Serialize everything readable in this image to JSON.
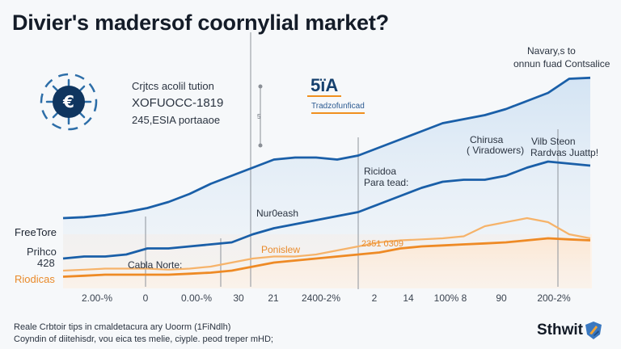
{
  "header": {
    "title": "Divier's madersof coornylial market?"
  },
  "info_panel": {
    "icon": "euro-coin-icon",
    "line1": "Crjtcs acolil tution",
    "line2": "XOFUOCC-1819",
    "line3": "245,ESIA portaaoe"
  },
  "badge": {
    "value": "5ïA",
    "subtitle": "Tradzofunficad"
  },
  "range_marker": {
    "label": "5"
  },
  "annotations": {
    "top_right_line1": "Navary,s to",
    "top_right_line2": "onnun fuad Contsalice",
    "chirusa_line1": "Chirusa",
    "chirusa_line2": "( Viradowers)",
    "vilb_line1": "Vilb Steon",
    "vilb_line2": "Rardvas Juattp!",
    "ricidoa_line1": "Ricidoa",
    "ricidoa_line2": "Para tead:",
    "nur": "Nur0eash",
    "ponislew": "Ponislew",
    "orange_value": "2351 0309",
    "cable": "Cabla Norte:"
  },
  "legend_left": {
    "freetore": "FreeTore",
    "prihco": "Prihco",
    "prihco_value": "428",
    "riodicas": "Riodicas"
  },
  "footer": {
    "line1": "Reale Crbtoir tips in cmaldetacura ary Uoorm (1FiNdlh)",
    "line2": "Coyndin of diitehisdr, vou eica tes melie, ciyple. peod treper mHD;"
  },
  "logo": {
    "text": "Sthwit",
    "icon": "shield-logo-icon"
  },
  "colors": {
    "blue_line": "#1a5fa8",
    "blue_fill": "#d7e6f4",
    "orange_line": "#ee8a25",
    "orange_light": "#f6b36a",
    "orange_fill": "#fde9d6",
    "navy": "#0f355f"
  },
  "chart_data": {
    "type": "line",
    "title": "Divier's madersof coornylial market?",
    "xlabel": "",
    "ylabel": "",
    "x_tick_labels": [
      "2.00-%",
      "0",
      "0.00-%",
      "30",
      "21",
      "2400-2%",
      "2",
      "14",
      "100% 8",
      "90",
      "200-2%"
    ],
    "ylim": [
      0,
      100
    ],
    "grid": false,
    "x": [
      0,
      1,
      2,
      3,
      4,
      5,
      6,
      7,
      8,
      9,
      10,
      11,
      12,
      13,
      14,
      15,
      16,
      17,
      18,
      19,
      20,
      21,
      22,
      23,
      24,
      25
    ],
    "series": [
      {
        "name": "FreeTore",
        "color": "#1a5fa8",
        "filled": true,
        "values": [
          30,
          30.5,
          31.5,
          33,
          35,
          38,
          42,
          47,
          51,
          55,
          59,
          60,
          60,
          59,
          61,
          65,
          69,
          73,
          77,
          79,
          81,
          84,
          88,
          92,
          99,
          99.5
        ]
      },
      {
        "name": "Prihco",
        "color": "#1a5fa8",
        "filled": false,
        "values": [
          10,
          11,
          11,
          12,
          15,
          15,
          16,
          17,
          18,
          22,
          25,
          27,
          29,
          31,
          33,
          37,
          41,
          45,
          48,
          49,
          49,
          51,
          55,
          58,
          57,
          56
        ]
      },
      {
        "name": "Riodicas (light)",
        "color": "#f6b36a",
        "filled": false,
        "values": [
          4,
          4.5,
          5,
          5,
          5,
          4.5,
          5,
          6,
          8,
          10,
          11,
          11,
          12,
          14,
          16,
          18,
          19,
          19.5,
          20,
          21,
          26,
          28,
          30,
          28,
          22,
          20
        ]
      },
      {
        "name": "Riodicas",
        "color": "#ee8a25",
        "filled": true,
        "values": [
          1,
          1.5,
          2,
          2,
          2,
          2,
          2.5,
          3,
          4,
          6,
          8,
          9,
          10,
          11,
          12,
          13,
          15,
          16,
          16.5,
          17,
          17.5,
          18,
          19,
          20,
          19.5,
          19
        ]
      }
    ],
    "annotations": [
      "Ricidoa Para tead:",
      "Nur0eash",
      "Ponislew",
      "2351 0309",
      "Cabla Norte:",
      "Chirusa (Viradowers)",
      "Vilb Steon Rardvas Juattp!",
      "Navary,s to onnun fuad Contsalice"
    ]
  }
}
